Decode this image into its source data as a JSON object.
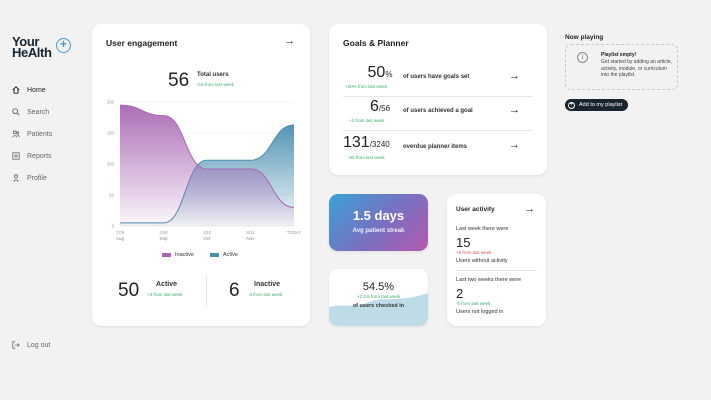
{
  "brand": {
    "line1": "Your",
    "line2": "HeAlth",
    "plus": "+"
  },
  "nav": [
    {
      "label": "Home",
      "icon": "home-icon"
    },
    {
      "label": "Search",
      "icon": "search-icon"
    },
    {
      "label": "Patients",
      "icon": "patients-icon"
    },
    {
      "label": "Reports",
      "icon": "reports-icon"
    },
    {
      "label": "Profile",
      "icon": "profile-icon"
    }
  ],
  "logout": "Log out",
  "engagement": {
    "title": "User engagement",
    "total_value": "56",
    "total_label": "Total users",
    "total_delta": "+16 from last week",
    "legend": [
      {
        "label": "Inactive",
        "color": "#a866b3"
      },
      {
        "label": "Active",
        "color": "#4a8fb0"
      }
    ],
    "active_value": "50",
    "active_label": "Active",
    "active_delta": "+3 from last week",
    "inactive_value": "6",
    "inactive_label": "Inactive",
    "inactive_delta": "-3 from last week"
  },
  "chart_data": {
    "type": "area",
    "x_ticks": [
      {
        "l1": "17/8",
        "l2": "Aug"
      },
      {
        "l1": "24/8",
        "l2": "Sep"
      },
      {
        "l1": "1/10",
        "l2": "Oct"
      },
      {
        "l1": "8/11",
        "l2": "Nov"
      },
      {
        "l1": "TODAY",
        "l2": ""
      }
    ],
    "y_ticks": [
      "200",
      "150",
      "100",
      "50",
      "0"
    ],
    "ylim": [
      0,
      200
    ],
    "x": [
      0,
      1,
      2,
      3,
      4
    ],
    "series": [
      {
        "name": "Inactive",
        "values": [
          195,
          178,
          92,
          92,
          30
        ]
      },
      {
        "name": "Active",
        "values": [
          5,
          5,
          106,
          106,
          163
        ]
      }
    ]
  },
  "goals": {
    "title": "Goals & Planner",
    "rows": [
      {
        "value": "50",
        "suffix": "%",
        "delta": "+20% from last week",
        "delta_color": "green",
        "label": "of users have goals set"
      },
      {
        "value": "6",
        "suffix": "/56",
        "delta": "+3 from last week",
        "delta_color": "green",
        "label": "of users achieved a goal"
      },
      {
        "value": "131",
        "suffix": "/3240",
        "delta": "-60 from last week",
        "delta_color": "green",
        "label": "overdue planner items"
      }
    ]
  },
  "streak": {
    "value": "1.5 days",
    "label": "Avg patient streak"
  },
  "checkin": {
    "value": "54.5%",
    "delta": "+2.1% from last week",
    "label": "of users checked in"
  },
  "activity": {
    "title": "User activity",
    "h1": "Last week there were",
    "v1": "15",
    "d1": "+5 from last week",
    "l1": "Users without activity",
    "h2": "Last two weeks there were",
    "v2": "2",
    "d2": "-5 from last week",
    "l2": "Users not logged in"
  },
  "playing": {
    "title": "Now playing",
    "empty_title": "Playlist empty!",
    "empty_body": "Get started by adding an article, activity, module, or curriculum into the playlist.",
    "button": "Add to my playlist"
  }
}
